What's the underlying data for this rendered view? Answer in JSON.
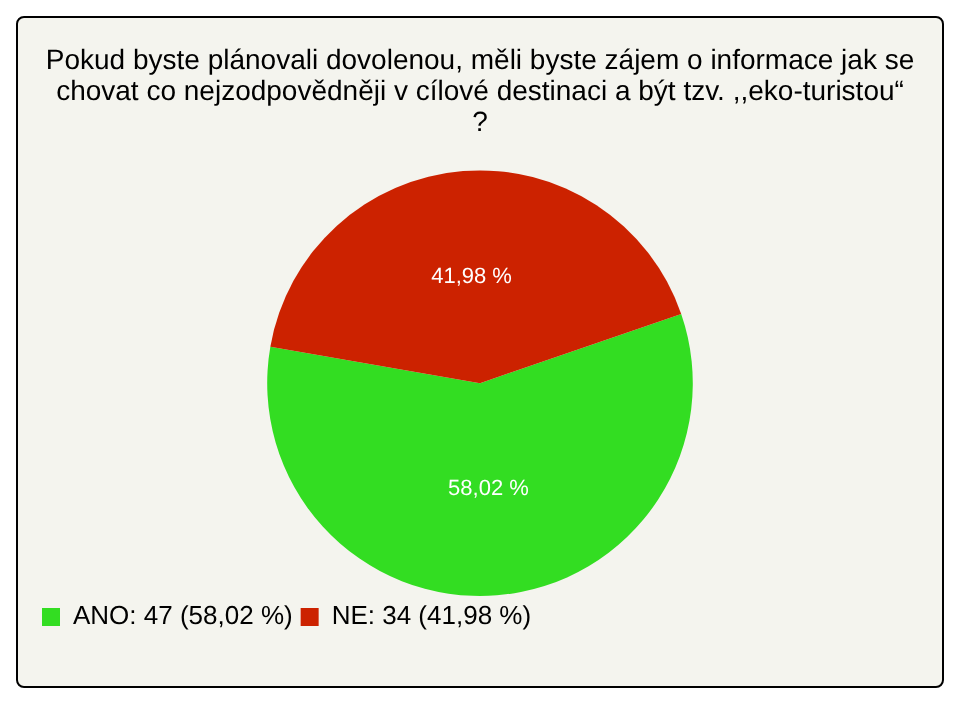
{
  "chart_data": {
    "type": "pie",
    "title": "Pokud byste plánovali dovolenou, měli byste zájem o informace jak se\nchovat co nejzodpovědněji v cílové destinaci a být tzv. ,,eko-turistou“\n?",
    "categories": [
      "ANO: 47 (58,02 %)",
      "NE: 34 (41,98 %)"
    ],
    "values": [
      58.02,
      41.98
    ],
    "value_labels": [
      "58,02 %",
      "41,98 %"
    ],
    "colors": [
      "#33dd22",
      "#cc2200"
    ],
    "legend": "bottom left"
  }
}
